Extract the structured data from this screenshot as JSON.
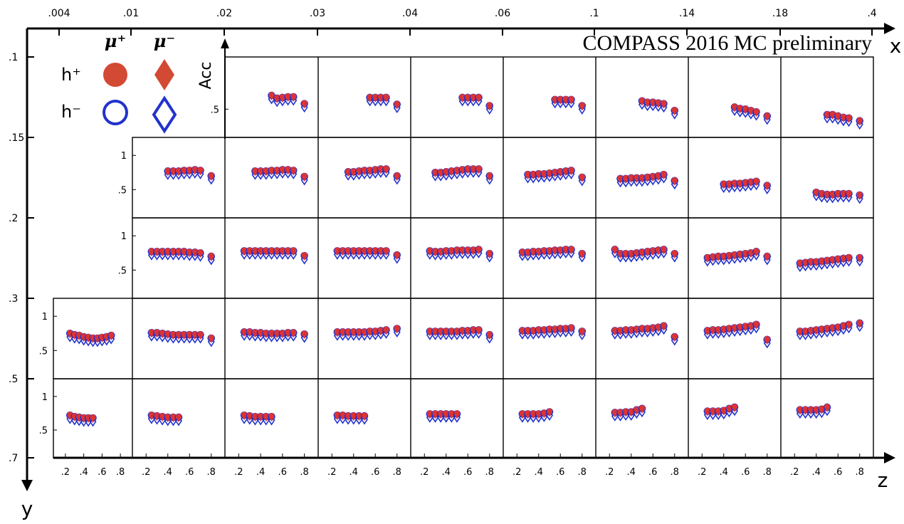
{
  "title": "COMPASS 2016 MC preliminary",
  "colors": {
    "plus": "#dd3333",
    "minus": "#2233cc",
    "axis": "#000000",
    "legend_fill": "#d24a34"
  },
  "legend": {
    "mu_plus": "μ⁺",
    "mu_minus": "μ⁻",
    "h_plus": "h⁺",
    "h_minus": "h⁻"
  },
  "axes": {
    "x_label": "x",
    "y_label": "y",
    "z_label": "z",
    "acc_label": "Acc",
    "x_ticks": [
      ".004",
      ".01",
      ".02",
      ".03",
      ".04",
      ".06",
      ".1",
      ".14",
      ".18",
      ".4"
    ],
    "y_ticks": [
      ".1",
      ".15",
      ".2",
      ".3",
      ".5",
      ".7"
    ],
    "z_ticks": [
      ".2",
      ".4",
      ".6",
      ".8"
    ],
    "acc_ticks": [
      ".5",
      "1"
    ]
  },
  "chart_data": {
    "type": "scatter",
    "title": "COMPASS 2016 MC preliminary",
    "xlabel": "z",
    "ylabel": "Acc",
    "outer_x": "x",
    "outer_y": "y",
    "xlim": [
      0.1,
      0.9
    ],
    "ylim": [
      0.15,
      1.2
    ],
    "grid_columns": 9,
    "grid_rows": 5,
    "series_names": [
      "μ⁺ h⁺",
      "μ⁺ h⁻",
      "μ⁻ h⁺",
      "μ⁻ h⁻"
    ],
    "bins": [
      {
        "row": 0,
        "col": 2,
        "z": [
          0.5,
          0.55,
          0.6,
          0.65,
          0.7,
          0.8
        ],
        "values": [
          0.7,
          0.66,
          0.67,
          0.68,
          0.68,
          0.58
        ]
      },
      {
        "row": 0,
        "col": 3,
        "z": [
          0.55,
          0.6,
          0.65,
          0.7,
          0.8
        ],
        "values": [
          0.67,
          0.67,
          0.67,
          0.67,
          0.57
        ]
      },
      {
        "row": 0,
        "col": 4,
        "z": [
          0.55,
          0.6,
          0.65,
          0.7,
          0.8
        ],
        "values": [
          0.67,
          0.67,
          0.67,
          0.67,
          0.55
        ]
      },
      {
        "row": 0,
        "col": 5,
        "z": [
          0.55,
          0.6,
          0.65,
          0.7,
          0.8
        ],
        "values": [
          0.64,
          0.64,
          0.64,
          0.64,
          0.55
        ]
      },
      {
        "row": 0,
        "col": 6,
        "z": [
          0.5,
          0.55,
          0.6,
          0.65,
          0.7,
          0.8
        ],
        "values": [
          0.62,
          0.6,
          0.6,
          0.59,
          0.58,
          0.48
        ]
      },
      {
        "row": 0,
        "col": 7,
        "z": [
          0.5,
          0.55,
          0.6,
          0.65,
          0.7,
          0.8
        ],
        "values": [
          0.53,
          0.51,
          0.5,
          0.48,
          0.46,
          0.4
        ]
      },
      {
        "row": 0,
        "col": 8,
        "z": [
          0.5,
          0.55,
          0.6,
          0.65,
          0.7,
          0.8
        ],
        "values": [
          0.42,
          0.42,
          0.4,
          0.38,
          0.37,
          0.33
        ]
      },
      {
        "row": 1,
        "col": 1,
        "z": [
          0.4,
          0.45,
          0.5,
          0.55,
          0.6,
          0.65,
          0.7,
          0.8
        ],
        "values": [
          0.77,
          0.77,
          0.77,
          0.78,
          0.78,
          0.79,
          0.78,
          0.7
        ]
      },
      {
        "row": 1,
        "col": 2,
        "z": [
          0.35,
          0.4,
          0.45,
          0.5,
          0.55,
          0.6,
          0.65,
          0.7,
          0.8
        ],
        "values": [
          0.77,
          0.77,
          0.77,
          0.78,
          0.78,
          0.79,
          0.79,
          0.78,
          0.69
        ]
      },
      {
        "row": 1,
        "col": 3,
        "z": [
          0.35,
          0.4,
          0.45,
          0.5,
          0.55,
          0.6,
          0.65,
          0.7,
          0.8
        ],
        "values": [
          0.76,
          0.76,
          0.77,
          0.78,
          0.78,
          0.79,
          0.8,
          0.8,
          0.7
        ]
      },
      {
        "row": 1,
        "col": 4,
        "z": [
          0.3,
          0.35,
          0.4,
          0.45,
          0.5,
          0.55,
          0.6,
          0.65,
          0.7,
          0.8
        ],
        "values": [
          0.75,
          0.75,
          0.76,
          0.77,
          0.78,
          0.79,
          0.8,
          0.8,
          0.8,
          0.7
        ]
      },
      {
        "row": 1,
        "col": 5,
        "z": [
          0.3,
          0.35,
          0.4,
          0.45,
          0.5,
          0.55,
          0.6,
          0.65,
          0.7,
          0.8
        ],
        "values": [
          0.72,
          0.72,
          0.73,
          0.73,
          0.74,
          0.75,
          0.76,
          0.77,
          0.78,
          0.68
        ]
      },
      {
        "row": 1,
        "col": 6,
        "z": [
          0.3,
          0.35,
          0.4,
          0.45,
          0.5,
          0.55,
          0.6,
          0.65,
          0.7,
          0.8
        ],
        "values": [
          0.66,
          0.66,
          0.67,
          0.67,
          0.67,
          0.68,
          0.69,
          0.7,
          0.72,
          0.63
        ]
      },
      {
        "row": 1,
        "col": 7,
        "z": [
          0.4,
          0.45,
          0.5,
          0.55,
          0.6,
          0.65,
          0.7,
          0.8
        ],
        "values": [
          0.58,
          0.58,
          0.59,
          0.59,
          0.6,
          0.61,
          0.62,
          0.56
        ]
      },
      {
        "row": 1,
        "col": 8,
        "z": [
          0.4,
          0.45,
          0.5,
          0.55,
          0.6,
          0.65,
          0.7,
          0.8
        ],
        "values": [
          0.46,
          0.44,
          0.43,
          0.43,
          0.44,
          0.44,
          0.44,
          0.42
        ]
      },
      {
        "row": 2,
        "col": 1,
        "z": [
          0.25,
          0.3,
          0.35,
          0.4,
          0.45,
          0.5,
          0.55,
          0.6,
          0.65,
          0.7,
          0.8
        ],
        "values": [
          0.77,
          0.77,
          0.77,
          0.77,
          0.77,
          0.77,
          0.77,
          0.76,
          0.76,
          0.75,
          0.7
        ]
      },
      {
        "row": 2,
        "col": 2,
        "z": [
          0.25,
          0.3,
          0.35,
          0.4,
          0.45,
          0.5,
          0.55,
          0.6,
          0.65,
          0.7,
          0.8
        ],
        "values": [
          0.78,
          0.78,
          0.78,
          0.78,
          0.78,
          0.78,
          0.78,
          0.78,
          0.78,
          0.78,
          0.71
        ]
      },
      {
        "row": 2,
        "col": 3,
        "z": [
          0.25,
          0.3,
          0.35,
          0.4,
          0.45,
          0.5,
          0.55,
          0.6,
          0.65,
          0.7,
          0.8
        ],
        "values": [
          0.78,
          0.78,
          0.78,
          0.78,
          0.78,
          0.78,
          0.78,
          0.78,
          0.78,
          0.78,
          0.72
        ]
      },
      {
        "row": 2,
        "col": 4,
        "z": [
          0.25,
          0.3,
          0.35,
          0.4,
          0.45,
          0.5,
          0.55,
          0.6,
          0.65,
          0.7,
          0.8
        ],
        "values": [
          0.78,
          0.77,
          0.77,
          0.78,
          0.78,
          0.79,
          0.79,
          0.79,
          0.79,
          0.8,
          0.74
        ]
      },
      {
        "row": 2,
        "col": 5,
        "z": [
          0.25,
          0.3,
          0.35,
          0.4,
          0.45,
          0.5,
          0.55,
          0.6,
          0.65,
          0.7,
          0.8
        ],
        "values": [
          0.76,
          0.76,
          0.77,
          0.77,
          0.78,
          0.78,
          0.79,
          0.79,
          0.8,
          0.8,
          0.74
        ]
      },
      {
        "row": 2,
        "col": 6,
        "z": [
          0.25,
          0.3,
          0.35,
          0.4,
          0.45,
          0.5,
          0.55,
          0.6,
          0.65,
          0.7,
          0.8
        ],
        "values": [
          0.8,
          0.74,
          0.74,
          0.74,
          0.75,
          0.76,
          0.77,
          0.78,
          0.79,
          0.8,
          0.74
        ]
      },
      {
        "row": 2,
        "col": 7,
        "z": [
          0.25,
          0.3,
          0.35,
          0.4,
          0.45,
          0.5,
          0.55,
          0.6,
          0.65,
          0.7,
          0.8
        ],
        "values": [
          0.68,
          0.69,
          0.7,
          0.7,
          0.71,
          0.72,
          0.73,
          0.74,
          0.75,
          0.77,
          0.7
        ]
      },
      {
        "row": 2,
        "col": 8,
        "z": [
          0.25,
          0.3,
          0.35,
          0.4,
          0.45,
          0.5,
          0.55,
          0.6,
          0.65,
          0.7,
          0.8
        ],
        "values": [
          0.6,
          0.61,
          0.62,
          0.62,
          0.63,
          0.64,
          0.65,
          0.66,
          0.67,
          0.68,
          0.68
        ]
      },
      {
        "row": 3,
        "col": 0,
        "z": [
          0.25,
          0.3,
          0.35,
          0.4,
          0.45,
          0.5,
          0.55,
          0.6,
          0.65,
          0.7
        ],
        "values": [
          0.75,
          0.73,
          0.72,
          0.7,
          0.69,
          0.68,
          0.68,
          0.69,
          0.7,
          0.72
        ]
      },
      {
        "row": 3,
        "col": 1,
        "z": [
          0.25,
          0.3,
          0.35,
          0.4,
          0.45,
          0.5,
          0.55,
          0.6,
          0.65,
          0.7,
          0.8
        ],
        "values": [
          0.76,
          0.76,
          0.75,
          0.74,
          0.73,
          0.73,
          0.73,
          0.73,
          0.73,
          0.73,
          0.68
        ]
      },
      {
        "row": 3,
        "col": 2,
        "z": [
          0.25,
          0.3,
          0.35,
          0.4,
          0.45,
          0.5,
          0.55,
          0.6,
          0.65,
          0.7,
          0.8
        ],
        "values": [
          0.77,
          0.77,
          0.76,
          0.76,
          0.75,
          0.75,
          0.75,
          0.75,
          0.76,
          0.76,
          0.74
        ]
      },
      {
        "row": 3,
        "col": 3,
        "z": [
          0.25,
          0.3,
          0.35,
          0.4,
          0.45,
          0.5,
          0.55,
          0.6,
          0.65,
          0.7,
          0.8
        ],
        "values": [
          0.77,
          0.77,
          0.77,
          0.77,
          0.77,
          0.77,
          0.78,
          0.78,
          0.79,
          0.8,
          0.82
        ]
      },
      {
        "row": 3,
        "col": 4,
        "z": [
          0.25,
          0.3,
          0.35,
          0.4,
          0.45,
          0.5,
          0.55,
          0.6,
          0.65,
          0.7,
          0.8
        ],
        "values": [
          0.78,
          0.78,
          0.78,
          0.78,
          0.78,
          0.78,
          0.79,
          0.79,
          0.8,
          0.8,
          0.73
        ]
      },
      {
        "row": 3,
        "col": 5,
        "z": [
          0.25,
          0.3,
          0.35,
          0.4,
          0.45,
          0.5,
          0.55,
          0.6,
          0.65,
          0.7,
          0.8
        ],
        "values": [
          0.79,
          0.79,
          0.79,
          0.8,
          0.8,
          0.81,
          0.81,
          0.82,
          0.82,
          0.83,
          0.78
        ]
      },
      {
        "row": 3,
        "col": 6,
        "z": [
          0.25,
          0.3,
          0.35,
          0.4,
          0.45,
          0.5,
          0.55,
          0.6,
          0.65,
          0.7,
          0.8
        ],
        "values": [
          0.79,
          0.79,
          0.8,
          0.8,
          0.81,
          0.82,
          0.82,
          0.83,
          0.84,
          0.86,
          0.7
        ]
      },
      {
        "row": 3,
        "col": 7,
        "z": [
          0.25,
          0.3,
          0.35,
          0.4,
          0.45,
          0.5,
          0.55,
          0.6,
          0.65,
          0.7,
          0.8
        ],
        "values": [
          0.79,
          0.8,
          0.8,
          0.81,
          0.82,
          0.83,
          0.84,
          0.85,
          0.86,
          0.88,
          0.66
        ]
      },
      {
        "row": 3,
        "col": 8,
        "z": [
          0.25,
          0.3,
          0.35,
          0.4,
          0.45,
          0.5,
          0.55,
          0.6,
          0.65,
          0.7,
          0.8
        ],
        "values": [
          0.78,
          0.78,
          0.79,
          0.8,
          0.81,
          0.82,
          0.83,
          0.84,
          0.86,
          0.88,
          0.9
        ]
      },
      {
        "row": 4,
        "col": 0,
        "z": [
          0.25,
          0.3,
          0.35,
          0.4,
          0.45,
          0.5
        ],
        "values": [
          0.72,
          0.7,
          0.69,
          0.68,
          0.68,
          0.68
        ]
      },
      {
        "row": 4,
        "col": 1,
        "z": [
          0.25,
          0.3,
          0.35,
          0.4,
          0.45,
          0.5
        ],
        "values": [
          0.72,
          0.71,
          0.7,
          0.69,
          0.69,
          0.69
        ]
      },
      {
        "row": 4,
        "col": 2,
        "z": [
          0.25,
          0.3,
          0.35,
          0.4,
          0.45,
          0.5
        ],
        "values": [
          0.72,
          0.71,
          0.7,
          0.7,
          0.7,
          0.7
        ]
      },
      {
        "row": 4,
        "col": 3,
        "z": [
          0.25,
          0.3,
          0.35,
          0.4,
          0.45,
          0.5
        ],
        "values": [
          0.72,
          0.72,
          0.71,
          0.71,
          0.71,
          0.71
        ]
      },
      {
        "row": 4,
        "col": 4,
        "z": [
          0.25,
          0.3,
          0.35,
          0.4,
          0.45,
          0.5
        ],
        "values": [
          0.74,
          0.74,
          0.74,
          0.74,
          0.74,
          0.74
        ]
      },
      {
        "row": 4,
        "col": 5,
        "z": [
          0.25,
          0.3,
          0.35,
          0.4,
          0.45,
          0.5
        ],
        "values": [
          0.74,
          0.74,
          0.74,
          0.74,
          0.75,
          0.77
        ]
      },
      {
        "row": 4,
        "col": 6,
        "z": [
          0.25,
          0.3,
          0.35,
          0.4,
          0.45,
          0.5
        ],
        "values": [
          0.76,
          0.76,
          0.77,
          0.77,
          0.8,
          0.82
        ]
      },
      {
        "row": 4,
        "col": 7,
        "z": [
          0.25,
          0.3,
          0.35,
          0.4,
          0.45,
          0.5
        ],
        "values": [
          0.78,
          0.78,
          0.78,
          0.79,
          0.82,
          0.84
        ]
      },
      {
        "row": 4,
        "col": 8,
        "z": [
          0.25,
          0.3,
          0.35,
          0.4,
          0.45,
          0.5
        ],
        "values": [
          0.8,
          0.8,
          0.8,
          0.8,
          0.81,
          0.84
        ]
      }
    ]
  }
}
